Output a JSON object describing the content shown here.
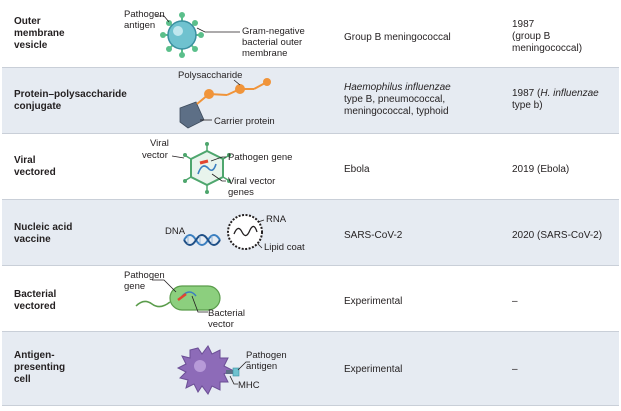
{
  "rows": [
    {
      "category": "Outer\nmembrane\nvesicle",
      "examples_plain": "Group B meningococcal",
      "year": "1987\n(group B\nmeningococcal)",
      "labels": [
        "Pathogen",
        "antigen",
        "Gram-negative",
        "bacterial outer",
        "membrane"
      ]
    },
    {
      "category": "Protein–polysaccharide\nconjugate",
      "examples_italic": "Haemophilus influenzae",
      "examples_rest": "\ntype B, pneumococcal,\nmeningococcal, typhoid",
      "year_a": "1987 (",
      "year_italic": "H. influenzae",
      "year_b": "\ntype b)",
      "labels": [
        "Polysaccharide",
        "Carrier protein"
      ]
    },
    {
      "category": "Viral\nvectored",
      "examples_plain": "Ebola",
      "year": "2019 (Ebola)",
      "labels": [
        "Viral",
        "vector",
        "Pathogen gene",
        "Viral vector",
        "genes"
      ]
    },
    {
      "category": "Nucleic acid\nvaccine",
      "examples_plain": "SARS-CoV-2",
      "year": "2020 (SARS-CoV-2)",
      "labels": [
        "DNA",
        "RNA",
        "Lipid coat"
      ]
    },
    {
      "category": "Bacterial\nvectored",
      "examples_plain": "Experimental",
      "year": "–",
      "labels": [
        "Pathogen",
        "gene",
        "Bacterial",
        "vector"
      ]
    },
    {
      "category": "Antigen-\npresenting\ncell",
      "examples_plain": "Experimental",
      "year": "–",
      "labels": [
        "Pathogen",
        "antigen",
        "MHC"
      ]
    }
  ],
  "colors": {
    "row_shade": "#e6ebf2",
    "vesicle": "#6fc2cf",
    "antigen": "#5bbf8b",
    "orange": "#f0943a",
    "carrier": "#5d6f86",
    "capsid": "#4ea66d",
    "pathogen_gene": "#e2452f",
    "dna_blue": "#3b7fc0",
    "bacterium": "#8ccf7e",
    "apc": "#8d6bb8"
  }
}
